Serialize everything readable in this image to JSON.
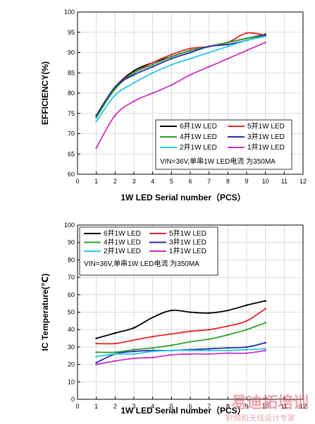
{
  "chart_data": [
    {
      "type": "line",
      "xlabel": "1W  LED Serial number（PCS）",
      "ylabel": "EFFICIENCY(%)",
      "xlim": [
        0,
        12
      ],
      "ylim": [
        60,
        100
      ],
      "xticks": [
        0,
        1,
        2,
        3,
        4,
        5,
        6,
        7,
        8,
        9,
        10,
        11,
        12
      ],
      "yticks": [
        60,
        65,
        70,
        75,
        80,
        85,
        90,
        95,
        100
      ],
      "grid": true,
      "legend_placement": "bottom-right",
      "note": "VIN=36V,单串1W LED电流 为350MA",
      "x": [
        1,
        2,
        3,
        4,
        5,
        6,
        7,
        8,
        9,
        10
      ],
      "series": [
        {
          "name": "6并1W LED",
          "color": "#000000",
          "values": [
            74.5,
            81.5,
            85.5,
            87.5,
            89.0,
            90.5,
            91.5,
            92.5,
            93.5,
            94.5
          ]
        },
        {
          "name": "5并1W LED",
          "color": "#e8262a",
          "values": [
            74.0,
            81.5,
            85.0,
            87.5,
            89.5,
            91.0,
            91.5,
            92.5,
            94.8,
            94.3
          ]
        },
        {
          "name": "4并1W LED",
          "color": "#2ca02c",
          "values": [
            74.0,
            81.0,
            85.0,
            87.0,
            89.0,
            90.5,
            91.5,
            92.5,
            93.5,
            94.3
          ]
        },
        {
          "name": "3并1W LED",
          "color": "#1f2fa8",
          "values": [
            74.5,
            81.5,
            84.5,
            86.5,
            88.5,
            90.0,
            91.5,
            92.0,
            93.0,
            94.3
          ]
        },
        {
          "name": "2并1W LED",
          "color": "#29c6e8",
          "values": [
            73.0,
            79.5,
            82.5,
            85.0,
            87.0,
            88.5,
            90.0,
            91.5,
            93.0,
            94.0
          ]
        },
        {
          "name": "1并1W LED",
          "color": "#c832c8",
          "values": [
            66.5,
            74.5,
            78.0,
            80.0,
            82.0,
            84.5,
            86.5,
            88.5,
            90.5,
            92.5
          ]
        }
      ]
    },
    {
      "type": "line",
      "xlabel": "1W  LED Serial number（PCS）",
      "ylabel": "IC Temperature(℃)",
      "xlim": [
        0,
        12
      ],
      "ylim": [
        0,
        100
      ],
      "xticks": [
        0,
        1,
        2,
        3,
        4,
        5,
        6,
        7,
        8,
        9,
        10,
        11,
        12
      ],
      "yticks": [
        0,
        10,
        20,
        30,
        40,
        50,
        60,
        70,
        80,
        90,
        100
      ],
      "grid": true,
      "legend_placement": "top-left",
      "note": "VIN=36V,单串1W LED电流 为350MA",
      "x": [
        1,
        2,
        3,
        4,
        5,
        6,
        7,
        8,
        9,
        10
      ],
      "series": [
        {
          "name": "6并1W LED",
          "color": "#000000",
          "values": [
            35,
            38,
            41,
            47,
            51,
            50,
            49.5,
            51,
            54,
            56.5
          ]
        },
        {
          "name": "5并1W LED",
          "color": "#e8262a",
          "values": [
            32,
            32,
            34,
            36,
            37.5,
            39,
            40,
            42,
            45,
            52
          ]
        },
        {
          "name": "4并1W LED",
          "color": "#2ca02c",
          "values": [
            27,
            27,
            28.5,
            29.5,
            31,
            33,
            34.5,
            37,
            40,
            44
          ]
        },
        {
          "name": "3并1W LED",
          "color": "#1f2fa8",
          "values": [
            21,
            26,
            27.5,
            28,
            28,
            28.5,
            29,
            29.5,
            30,
            32.5
          ]
        },
        {
          "name": "2并1W LED",
          "color": "#29c6e8",
          "values": [
            24.5,
            26,
            26,
            27.5,
            28,
            28,
            28,
            28,
            28.5,
            29
          ]
        },
        {
          "name": "1并1W LED",
          "color": "#c832c8",
          "values": [
            20,
            22,
            23.5,
            24,
            25.5,
            26,
            26,
            26.5,
            26.5,
            28
          ]
        }
      ]
    }
  ],
  "watermark": {
    "brand": "易迪拓培训",
    "tagline": "射频和天线设计专家"
  }
}
